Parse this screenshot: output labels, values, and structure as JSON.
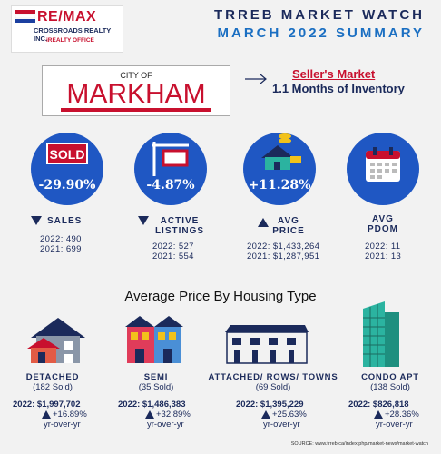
{
  "logo": {
    "brand": "RE/MAX",
    "office": "CROSSROADS REALTY INC.",
    "tagline": "iREALTY OFFICE"
  },
  "header": {
    "title": "TRREB MARKET WATCH",
    "subtitle": "MARCH 2022 SUMMARY"
  },
  "city": {
    "prefix": "CITY OF",
    "name": "MARKHAM"
  },
  "market": {
    "type": "Seller's Market",
    "inventory": "1.1 Months of Inventory"
  },
  "stats": [
    {
      "value": "-29.90%",
      "label": "SALES",
      "trend": "down",
      "line1": "2022: 490",
      "line2": "2021: 699",
      "icon": "sold-sign-icon"
    },
    {
      "value": "-4.87%",
      "label": "ACTIVE LISTINGS",
      "label_a": "ACTIVE",
      "label_b": "LISTINGS",
      "trend": "down",
      "line1": "2022: 527",
      "line2": "2021: 554",
      "icon": "listing-sign-icon"
    },
    {
      "value": "+11.28%",
      "label_a": "AVG",
      "label_b": "PRICE",
      "trend": "up",
      "line1": "2022: $1,433,264",
      "line2": "2021: $1,287,951",
      "icon": "house-money-icon"
    },
    {
      "value": "",
      "label_a": "AVG",
      "label_b": "PDOM",
      "trend": "none",
      "line1": "2022: 11",
      "line2": "2021: 13",
      "icon": "calendar-icon"
    }
  ],
  "section_title": "Average Price By Housing Type",
  "housing": [
    {
      "type": "DETACHED",
      "sold": "(182 Sold)",
      "price": "2022: $1,997,702",
      "change": "+16.89%",
      "note": "yr-over-yr",
      "icon": "detached-house-icon"
    },
    {
      "type": "SEMI",
      "sold": "(35 Sold)",
      "price": "2022: $1,486,383",
      "change": "+32.89%",
      "note": "yr-over-yr",
      "icon": "semi-house-icon"
    },
    {
      "type": "ATTACHED/ ROWS/ TOWNS",
      "sold": "(69 Sold)",
      "price": "2022: $1,395,229",
      "change": "+25.63%",
      "note": "yr-over-yr",
      "icon": "townhouse-icon"
    },
    {
      "type": "CONDO APT",
      "sold": "(138 Sold)",
      "price": "2022: $826,818",
      "change": "+28.36%",
      "note": "yr-over-yr",
      "icon": "condo-building-icon"
    }
  ],
  "source": "SOURCE:  www.trreb.ca/index.php/market-news/market-watch",
  "colors": {
    "navy": "#1b2a5b",
    "blue": "#1f57c3",
    "red": "#c8102e"
  }
}
